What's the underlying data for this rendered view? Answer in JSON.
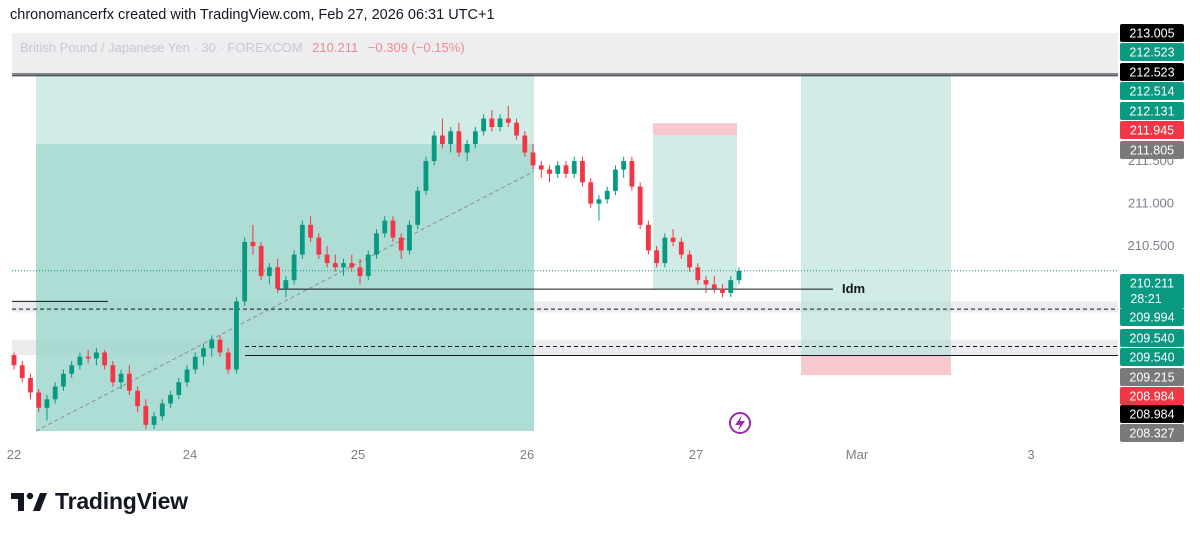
{
  "header": {
    "credit": "chronomancerfx created with TradingView.com, Feb 27, 2026 06:31 UTC+1"
  },
  "symbol": {
    "name": "British Pound / Japanese Yen · 30 · FOREXCOM",
    "price": "210.211",
    "change": "−0.309 (−0.15%)"
  },
  "brand": {
    "name": "TradingView",
    "logo_icon": "tradingview-logo-icon"
  },
  "chart_data": {
    "type": "candlestick",
    "title": "",
    "xlabel": "",
    "ylabel": "",
    "ylim": [
      208.327,
      213.005
    ],
    "grid": false,
    "x_ticks": [
      "22",
      "24",
      "25",
      "26",
      "27",
      "Mar",
      "3"
    ],
    "y_ticks": [
      "211.500",
      "211.000",
      "210.500"
    ],
    "ohlc_series": [
      {
        "name": "GBPJPY 30m",
        "values": [
          [
            209.22,
            209.25,
            209.05,
            209.1
          ],
          [
            209.1,
            209.15,
            208.9,
            208.95
          ],
          [
            208.95,
            209.0,
            208.7,
            208.78
          ],
          [
            208.78,
            208.82,
            208.55,
            208.6
          ],
          [
            208.6,
            208.75,
            208.45,
            208.7
          ],
          [
            208.7,
            208.9,
            208.65,
            208.85
          ],
          [
            208.85,
            209.05,
            208.8,
            209.0
          ],
          [
            209.0,
            209.15,
            208.95,
            209.1
          ],
          [
            209.1,
            209.25,
            209.05,
            209.2
          ],
          [
            209.2,
            209.28,
            209.12,
            209.18
          ],
          [
            209.18,
            209.3,
            209.1,
            209.25
          ],
          [
            209.25,
            209.28,
            209.05,
            209.1
          ],
          [
            209.1,
            209.15,
            208.85,
            208.9
          ],
          [
            208.9,
            209.05,
            208.82,
            209.0
          ],
          [
            209.0,
            209.1,
            208.75,
            208.8
          ],
          [
            208.8,
            208.85,
            208.55,
            208.62
          ],
          [
            208.62,
            208.7,
            208.35,
            208.4
          ],
          [
            208.4,
            208.55,
            208.35,
            208.5
          ],
          [
            208.5,
            208.7,
            208.45,
            208.65
          ],
          [
            208.65,
            208.8,
            208.6,
            208.75
          ],
          [
            208.75,
            208.95,
            208.7,
            208.9
          ],
          [
            208.9,
            209.1,
            208.85,
            209.05
          ],
          [
            209.05,
            209.25,
            209.0,
            209.2
          ],
          [
            209.2,
            209.35,
            209.1,
            209.3
          ],
          [
            209.3,
            209.45,
            209.2,
            209.4
          ],
          [
            209.4,
            209.45,
            209.2,
            209.25
          ],
          [
            209.25,
            209.3,
            209.0,
            209.05
          ],
          [
            209.05,
            209.9,
            209.0,
            209.85
          ],
          [
            209.85,
            210.6,
            209.8,
            210.55
          ],
          [
            210.55,
            210.75,
            210.4,
            210.5
          ],
          [
            210.5,
            210.55,
            210.1,
            210.15
          ],
          [
            210.15,
            210.3,
            210.05,
            210.25
          ],
          [
            210.25,
            210.35,
            209.95,
            210.0
          ],
          [
            210.0,
            210.15,
            209.9,
            210.1
          ],
          [
            210.1,
            210.45,
            210.05,
            210.4
          ],
          [
            210.4,
            210.8,
            210.35,
            210.75
          ],
          [
            210.75,
            210.85,
            210.55,
            210.6
          ],
          [
            210.6,
            210.65,
            210.35,
            210.4
          ],
          [
            210.4,
            210.5,
            210.25,
            210.3
          ],
          [
            210.3,
            210.4,
            210.2,
            210.25
          ],
          [
            210.25,
            210.35,
            210.15,
            210.3
          ],
          [
            210.3,
            210.4,
            210.2,
            210.25
          ],
          [
            210.25,
            210.35,
            210.05,
            210.15
          ],
          [
            210.15,
            210.45,
            210.1,
            210.4
          ],
          [
            210.4,
            210.7,
            210.35,
            210.65
          ],
          [
            210.65,
            210.85,
            210.6,
            210.8
          ],
          [
            210.8,
            210.85,
            210.55,
            210.6
          ],
          [
            210.6,
            210.65,
            210.35,
            210.45
          ],
          [
            210.45,
            210.8,
            210.4,
            210.75
          ],
          [
            210.75,
            211.2,
            210.7,
            211.15
          ],
          [
            211.15,
            211.55,
            211.1,
            211.5
          ],
          [
            211.5,
            211.85,
            211.45,
            211.8
          ],
          [
            211.8,
            212.0,
            211.65,
            211.7
          ],
          [
            211.7,
            211.9,
            211.6,
            211.85
          ],
          [
            211.85,
            211.95,
            211.55,
            211.6
          ],
          [
            211.6,
            211.75,
            211.5,
            211.7
          ],
          [
            211.7,
            211.9,
            211.65,
            211.85
          ],
          [
            211.85,
            212.05,
            211.8,
            212.0
          ],
          [
            212.0,
            212.1,
            211.85,
            211.9
          ],
          [
            211.9,
            212.05,
            211.85,
            212.0
          ],
          [
            212.0,
            212.15,
            211.9,
            211.95
          ],
          [
            211.95,
            212.0,
            211.75,
            211.8
          ],
          [
            211.8,
            211.85,
            211.55,
            211.6
          ],
          [
            211.6,
            211.7,
            211.4,
            211.45
          ],
          [
            211.45,
            211.5,
            211.3,
            211.4
          ],
          [
            211.4,
            211.45,
            211.25,
            211.35
          ],
          [
            211.35,
            211.5,
            211.3,
            211.45
          ],
          [
            211.45,
            211.5,
            211.3,
            211.35
          ],
          [
            211.35,
            211.55,
            211.3,
            211.5
          ],
          [
            211.5,
            211.55,
            211.2,
            211.25
          ],
          [
            211.25,
            211.3,
            210.95,
            211.0
          ],
          [
            211.0,
            211.1,
            210.8,
            211.05
          ],
          [
            211.05,
            211.2,
            211.0,
            211.15
          ],
          [
            211.15,
            211.45,
            211.1,
            211.4
          ],
          [
            211.4,
            211.55,
            211.3,
            211.5
          ],
          [
            211.5,
            211.55,
            211.15,
            211.2
          ],
          [
            211.2,
            211.25,
            210.7,
            210.75
          ],
          [
            210.75,
            210.8,
            210.4,
            210.45
          ],
          [
            210.45,
            210.5,
            210.25,
            210.3
          ],
          [
            210.3,
            210.65,
            210.25,
            210.6
          ],
          [
            210.6,
            210.7,
            210.5,
            210.55
          ],
          [
            210.55,
            210.6,
            210.35,
            210.4
          ],
          [
            210.4,
            210.45,
            210.2,
            210.25
          ],
          [
            210.25,
            210.3,
            210.05,
            210.1
          ],
          [
            210.1,
            210.15,
            209.95,
            210.05
          ],
          [
            210.05,
            210.15,
            209.95,
            210.0
          ],
          [
            210.0,
            210.05,
            209.9,
            209.95
          ],
          [
            209.95,
            210.15,
            209.9,
            210.1
          ],
          [
            210.1,
            210.25,
            210.05,
            210.21
          ]
        ]
      }
    ],
    "horizontal_levels": [
      {
        "price": 213.005,
        "label": "213.005",
        "tag_color": "#000000"
      },
      {
        "price": 212.523,
        "label": "212.523",
        "tag_color": "#0a9981"
      },
      {
        "price": 212.523,
        "label": "212.523",
        "tag_color": "#000000"
      },
      {
        "price": 212.514,
        "label": "212.514",
        "tag_color": "#0a9981"
      },
      {
        "price": 212.131,
        "label": "212.131",
        "tag_color": "#0a9981"
      },
      {
        "price": 211.945,
        "label": "211.945",
        "tag_color": "#f23645"
      },
      {
        "price": 211.805,
        "label": "211.805",
        "tag_color": "#7a7a7a"
      },
      {
        "price": 210.211,
        "label": "210.211",
        "tag_color": "#0a9981"
      },
      {
        "price": 209.994,
        "label": "209.994",
        "tag_color": "#0a9981"
      },
      {
        "price": 209.54,
        "label": "209.540",
        "tag_color": "#0a9981"
      },
      {
        "price": 209.54,
        "label": "209.540",
        "tag_color": "#0a9981"
      },
      {
        "price": 209.215,
        "label": "209.215",
        "tag_color": "#7a7a7a"
      },
      {
        "price": 208.984,
        "label": "208.984",
        "tag_color": "#f23645"
      },
      {
        "price": 208.984,
        "label": "208.984",
        "tag_color": "#000000"
      },
      {
        "price": 208.327,
        "label": "208.327",
        "tag_color": "#7a7a7a"
      }
    ],
    "countdown": "28:21",
    "annotation": "Idm",
    "colors": {
      "up": "#089981",
      "down": "#f23645",
      "zone": "#b2dfd6",
      "zone_strong": "#8fd1c4",
      "stop": "#f7c9cf"
    }
  }
}
